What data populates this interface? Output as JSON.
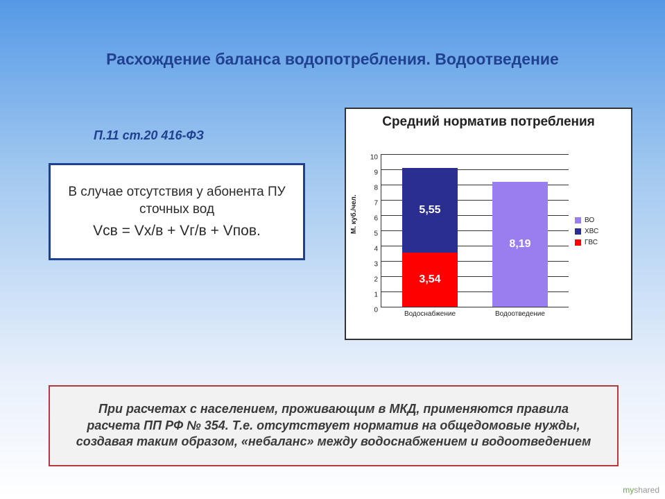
{
  "title": "Расхождение баланса водопотребления. Водоотведение",
  "law_ref": "П.11 ст.20 416-ФЗ",
  "formula": {
    "text": "В случае отсутствия у абонента ПУ сточных вод",
    "equation": "Vсв = Vх/в + Vг/в + Vпов.",
    "border_color": "#20418f",
    "bg_color": "#ffffff"
  },
  "chart": {
    "type": "stacked-bar",
    "title": "Средний норматив потребления",
    "ylabel": "М. куб./чел.",
    "ylim": [
      0,
      10
    ],
    "ytick_step": 1,
    "background_color": "#ffffff",
    "grid_color": "#333333",
    "border_color": "#333333",
    "title_fontsize": 19,
    "label_fontsize": 10,
    "categories": [
      "Водоснабжение",
      "Водоотведение"
    ],
    "series": [
      {
        "name": "ГВС",
        "color": "#ff0000",
        "values": [
          3.54,
          0
        ]
      },
      {
        "name": "ХВС",
        "color": "#2a2f8f",
        "values": [
          5.55,
          0
        ]
      },
      {
        "name": "ВО",
        "color": "#9a7ef0",
        "values": [
          0,
          8.19
        ]
      }
    ],
    "bar_labels": [
      {
        "cat": 0,
        "seg": 0,
        "text": "3,54"
      },
      {
        "cat": 0,
        "seg": 1,
        "text": "5,55"
      },
      {
        "cat": 1,
        "seg": 2,
        "text": "8,19"
      }
    ],
    "legend_order": [
      "ВО",
      "ХВС",
      "ГВС"
    ],
    "legend_colors": {
      "ВО": "#9a7ef0",
      "ХВС": "#2a2f8f",
      "ГВС": "#ff0000"
    }
  },
  "footer": {
    "text": "При расчетах с населением, проживающим в МКД, применяются правила расчета ПП РФ № 354. Т.е. отсутствует норматив на общедомовые нужды, создавая таким образом, «небаланс» между водоснабжением и водоотведением",
    "border_color": "#b33a3a",
    "bg_color": "#f2f2f2"
  },
  "watermark": {
    "my": "my",
    "shared": "shared"
  }
}
